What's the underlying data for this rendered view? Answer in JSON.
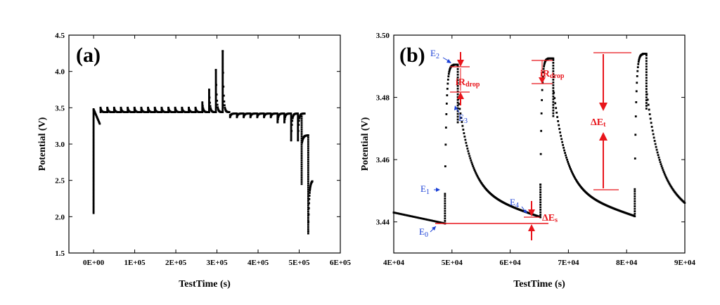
{
  "chart_data": [
    {
      "type": "scatter",
      "panel_label": "(a)",
      "xlabel": "TestTime (s)",
      "ylabel": "Potential (V)",
      "xlim": [
        -60000,
        600000
      ],
      "ylim": [
        1.5,
        4.5
      ],
      "x_ticks": [
        0,
        100000,
        200000,
        300000,
        400000,
        500000,
        600000
      ],
      "x_tick_labels": [
        "0E+00",
        "1E+05",
        "2E+05",
        "3E+05",
        "4E+05",
        "5E+05",
        "6E+05"
      ],
      "y_ticks": [
        1.5,
        2.0,
        2.5,
        3.0,
        3.5,
        4.0,
        4.5
      ],
      "y_tick_labels": [
        "1.5",
        "2.0",
        "2.5",
        "3.0",
        "3.5",
        "4.0",
        "4.5"
      ],
      "grid": false,
      "series_color": "#000000"
    },
    {
      "type": "scatter",
      "panel_label": "(b)",
      "xlabel": "TestTime (s)",
      "ylabel": "Potential (V)",
      "xlim": [
        40000,
        90000
      ],
      "ylim": [
        3.43,
        3.5
      ],
      "x_ticks": [
        40000,
        50000,
        60000,
        70000,
        80000,
        90000
      ],
      "x_tick_labels": [
        "4E+04",
        "5E+04",
        "6E+04",
        "7E+04",
        "8E+04",
        "9E+04"
      ],
      "y_ticks": [
        3.44,
        3.46,
        3.48,
        3.5
      ],
      "y_tick_labels": [
        "3.44",
        "3.46",
        "3.48",
        "3.50"
      ],
      "grid": false,
      "series_color": "#000000",
      "annotations": {
        "E0": {
          "main": "E",
          "sub": "0"
        },
        "E1": {
          "main": "E",
          "sub": "1"
        },
        "E2": {
          "main": "E",
          "sub": "2"
        },
        "E3": {
          "main": "E",
          "sub": "3"
        },
        "E4": {
          "main": "E",
          "sub": "4"
        },
        "ir_drop": {
          "main": "iR",
          "sub": "drop"
        },
        "delta_es": {
          "main": "ΔE",
          "sub": "s"
        },
        "delta_et": {
          "main": "ΔE",
          "sub": "t"
        }
      }
    }
  ],
  "colors": {
    "data": "#000000",
    "annotation_blue": "#1a3fd6",
    "annotation_red": "#e8151b"
  }
}
